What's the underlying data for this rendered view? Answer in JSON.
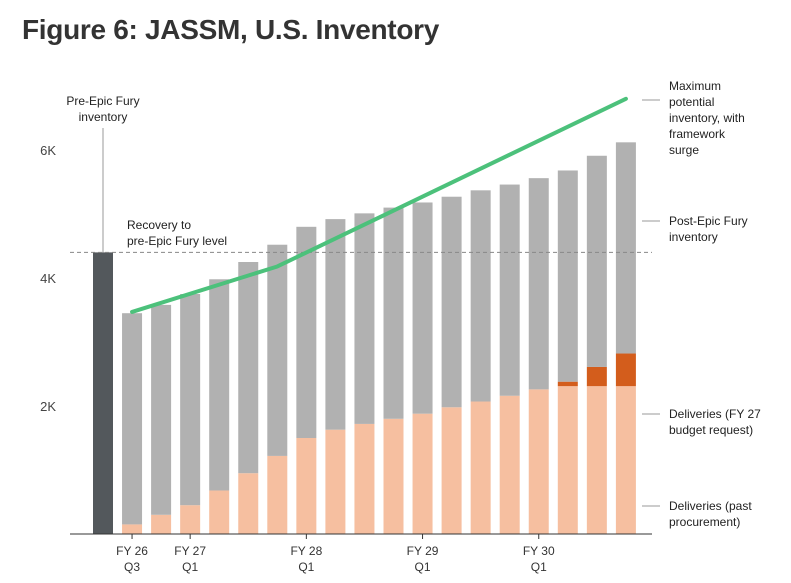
{
  "chart_data": {
    "type": "bar",
    "title": "Figure 6: JASSM, U.S. Inventory",
    "ylim": [
      0,
      7000
    ],
    "y_ticks": [
      {
        "value": 2000,
        "label": "2K"
      },
      {
        "value": 4000,
        "label": "4K"
      },
      {
        "value": 6000,
        "label": "6K"
      }
    ],
    "x_tick_labels": [
      {
        "bar_index": 1,
        "lines": [
          "FY 26",
          "Q3"
        ]
      },
      {
        "bar_index": 3,
        "lines": [
          "FY 27",
          "Q1"
        ]
      },
      {
        "bar_index": 7,
        "lines": [
          "FY 28",
          "Q1"
        ]
      },
      {
        "bar_index": 11,
        "lines": [
          "FY 29",
          "Q1"
        ]
      },
      {
        "bar_index": 15,
        "lines": [
          "FY 30",
          "Q1"
        ]
      }
    ],
    "bars": [
      {
        "pre_epic_fury": 4400
      },
      {
        "past": 150,
        "budget": 0,
        "post": 3300
      },
      {
        "past": 300,
        "budget": 0,
        "post": 3280
      },
      {
        "past": 450,
        "budget": 0,
        "post": 3300
      },
      {
        "past": 680,
        "budget": 0,
        "post": 3300
      },
      {
        "past": 950,
        "budget": 0,
        "post": 3300
      },
      {
        "past": 1220,
        "budget": 0,
        "post": 3300
      },
      {
        "past": 1500,
        "budget": 0,
        "post": 3300
      },
      {
        "past": 1630,
        "budget": 0,
        "post": 3290
      },
      {
        "past": 1720,
        "budget": 0,
        "post": 3290
      },
      {
        "past": 1800,
        "budget": 0,
        "post": 3300
      },
      {
        "past": 1880,
        "budget": 0,
        "post": 3300
      },
      {
        "past": 1980,
        "budget": 0,
        "post": 3290
      },
      {
        "past": 2070,
        "budget": 0,
        "post": 3300
      },
      {
        "past": 2160,
        "budget": 0,
        "post": 3300
      },
      {
        "past": 2260,
        "budget": 0,
        "post": 3300
      },
      {
        "past": 2310,
        "budget": 70,
        "post": 3300
      },
      {
        "past": 2310,
        "budget": 300,
        "post": 3300
      },
      {
        "past": 2310,
        "budget": 510,
        "post": 3300
      }
    ],
    "max_line": [
      {
        "bar_index": 1,
        "value": 3470
      },
      {
        "bar_index": 6,
        "value": 4180
      },
      {
        "bar_index": 18,
        "value": 6800
      }
    ],
    "reference_line": {
      "value": 4400,
      "label_lines": [
        "Recovery to",
        "pre-Epic Fury level"
      ]
    },
    "annotations": {
      "pre_epic": [
        "Pre-Epic Fury",
        "inventory"
      ],
      "max_line": [
        "Maximum",
        "potential",
        "inventory, with",
        "framework",
        "surge"
      ],
      "post": [
        "Post-Epic Fury",
        "inventory"
      ],
      "budget": [
        "Deliveries (FY 27",
        "budget request)"
      ],
      "past": [
        "Deliveries (past",
        "procurement)"
      ]
    },
    "colors": {
      "pre_epic": "#53585c",
      "post": "#b1b1b1",
      "past": "#f6bfa0",
      "budget": "#d35d1c",
      "max_line": "#4cc17b",
      "reference": "#888888",
      "axis": "#333333",
      "leader": "#999999"
    }
  }
}
